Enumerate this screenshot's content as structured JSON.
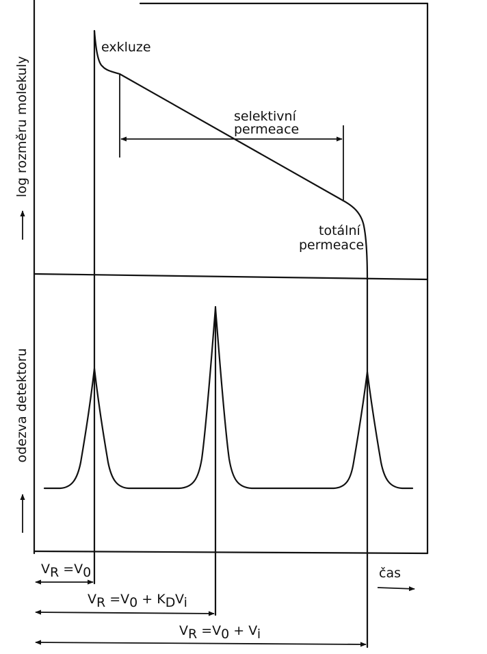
{
  "top_panel": {
    "ylabel": "log rozměru molekuly",
    "exclusion_label": "exkluze",
    "selective_label_1": "selektivní",
    "selective_label_2": "permeace",
    "total_label_1": "totální",
    "total_label_2": "permeace"
  },
  "bottom_panel": {
    "ylabel": "odezva detektoru",
    "xlabel": "čas"
  },
  "volume_labels": {
    "v0": {
      "lhs": "V",
      "lhs_sub": "R",
      "eq": " =V",
      "rhs_sub": "0"
    },
    "vkd": {
      "lhs": "V",
      "lhs_sub": "R",
      "eq": " =V",
      "s1": "0",
      "plus": " + K",
      "s2": "D",
      "v": "V",
      "s3": "i"
    },
    "vt": {
      "lhs": "V",
      "lhs_sub": "R",
      "eq": " =V",
      "s1": "0",
      "plus": " + V",
      "s2": "i"
    }
  },
  "colors": {
    "ink": "#111111",
    "paper": "#ffffff"
  }
}
